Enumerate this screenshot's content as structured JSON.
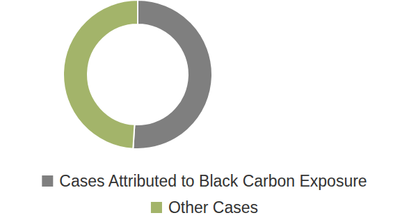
{
  "chart_data": {
    "type": "pie",
    "categories": [
      "Cases Attributed to Black Carbon Exposure",
      "Other Cases"
    ],
    "values": [
      51,
      49
    ],
    "colors": [
      "#7f7f7f",
      "#a3b46a"
    ],
    "legend": "bottom"
  }
}
